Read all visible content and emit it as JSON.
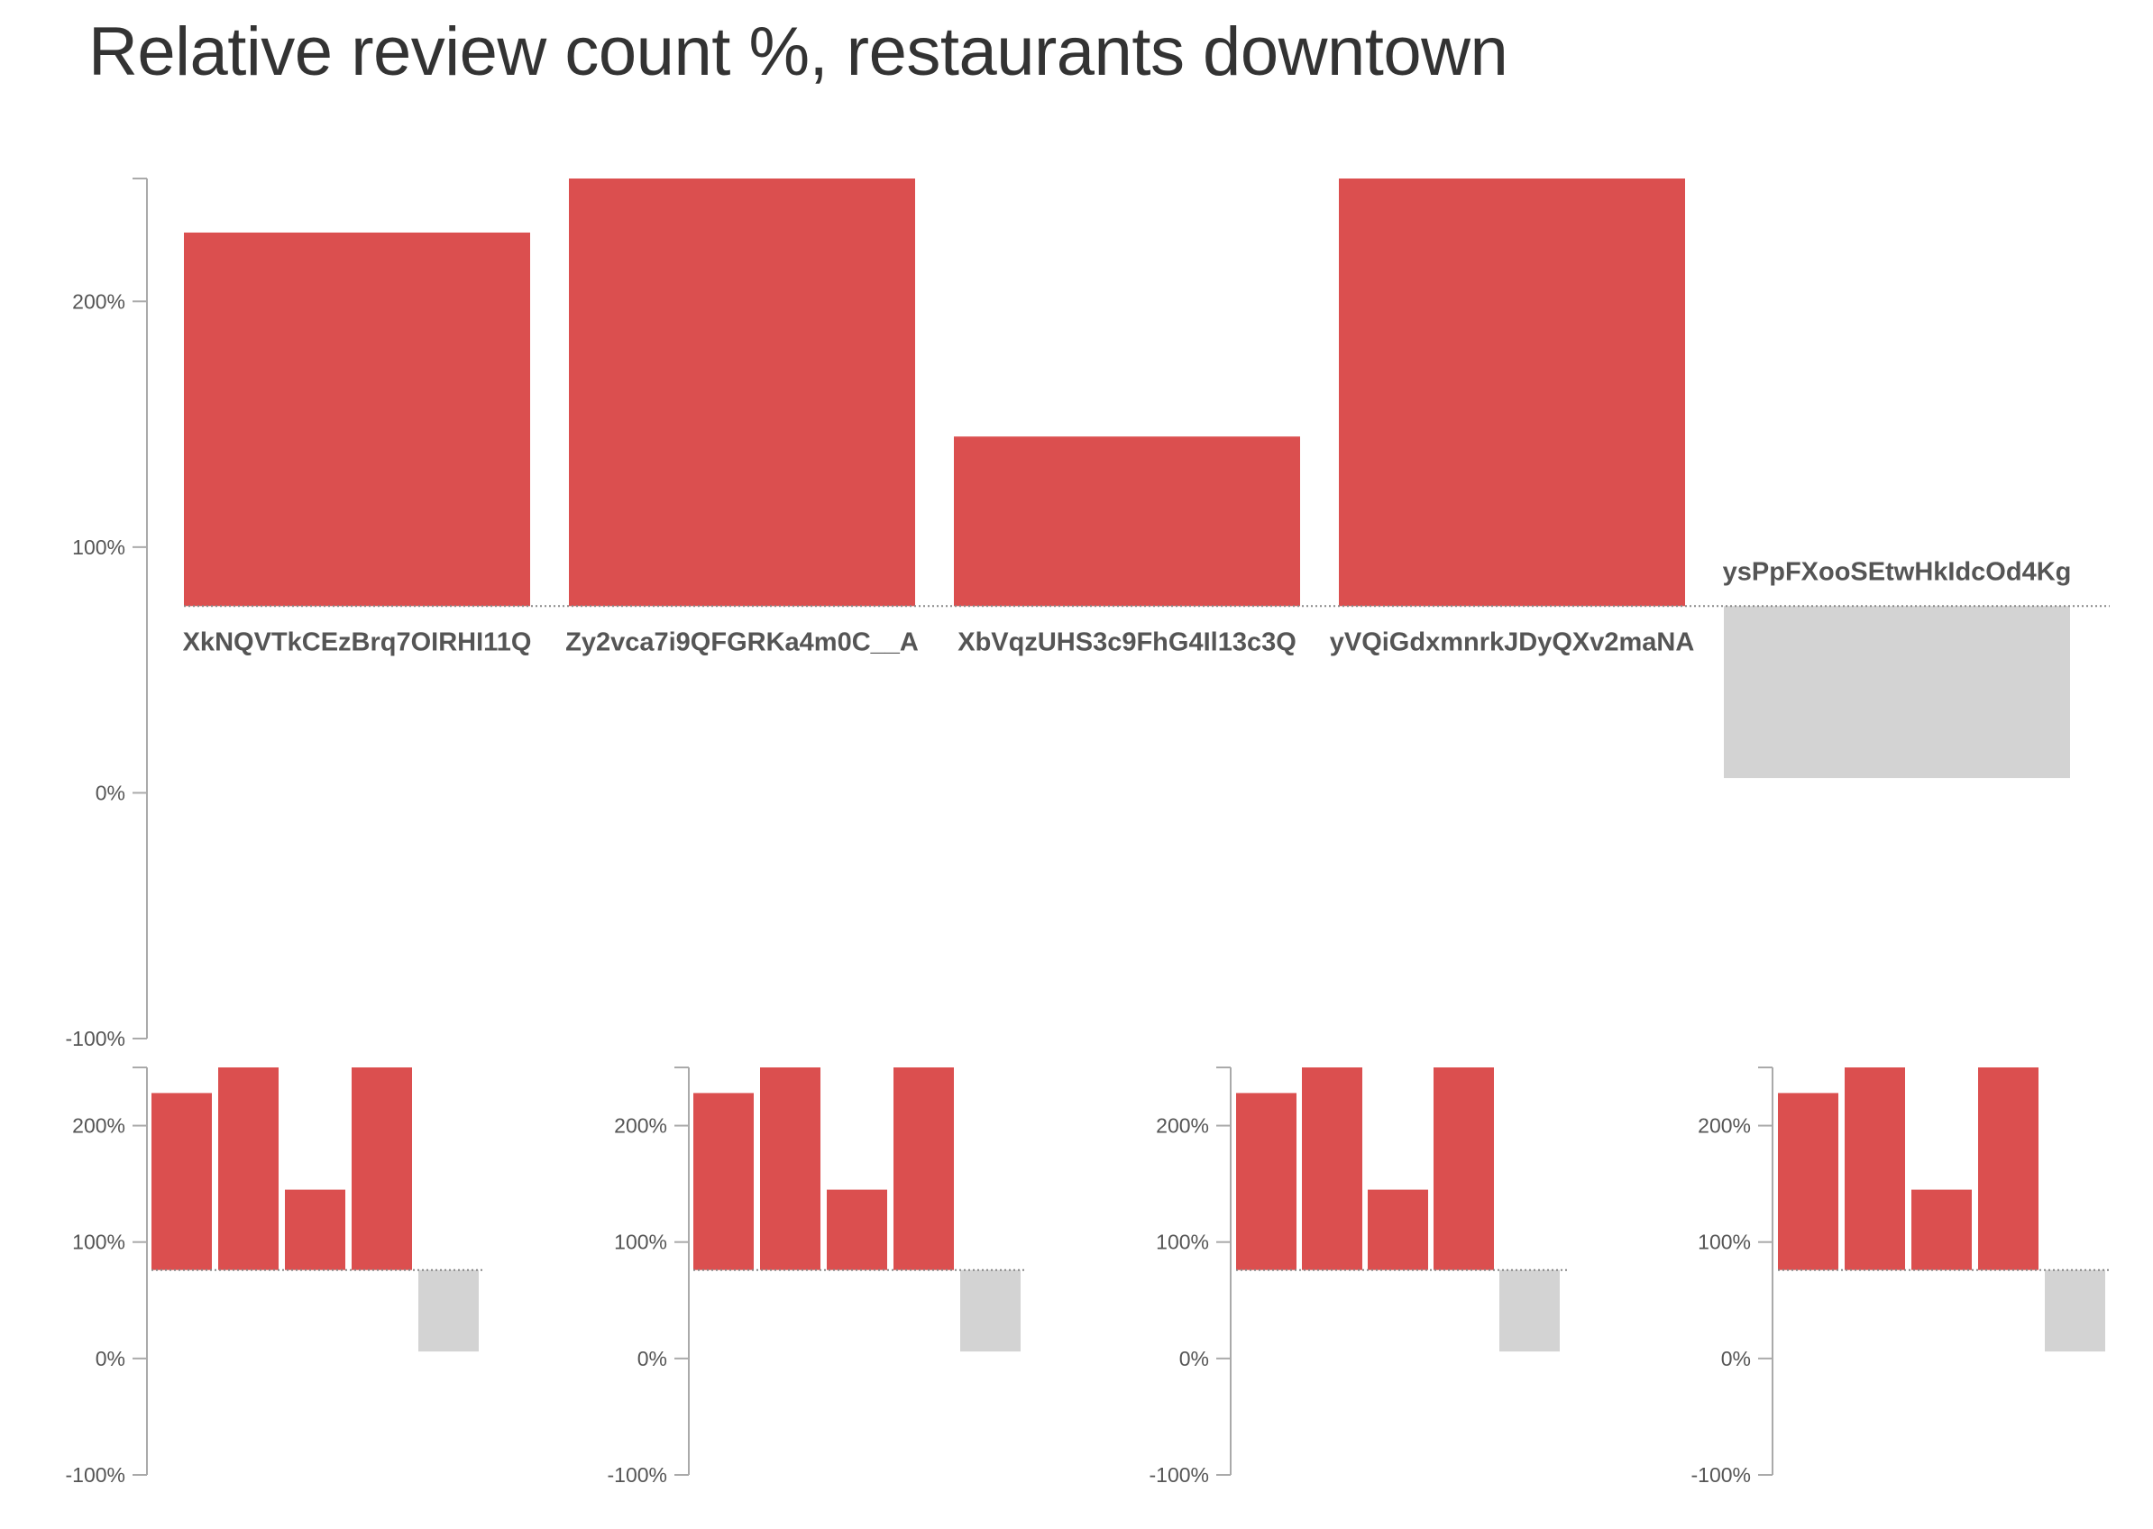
{
  "chart_data": [
    {
      "type": "bar",
      "title": "Relative review count %, restaurants downtown",
      "categories": [
        "XkNQVTkCEzBrq7OIRHI11Q",
        "Zy2vca7i9QFGRKa4m0C__A",
        "XbVqzUHS3c9FhG4Il13c3Q",
        "yVQiGdxmnrkJDyQXv2maNA",
        "ysPpFXooSEtwHkIdcOd4Kg"
      ],
      "baseline": 76,
      "values": [
        228,
        250,
        145,
        250,
        6
      ],
      "ylim": [
        -100,
        250
      ],
      "yticks": [
        -100,
        0,
        100,
        200
      ],
      "ytick_labels": [
        "-100%",
        "0%",
        "100%",
        "200%"
      ],
      "colors": {
        "positive": "#db4f4f",
        "negative": "#d3d3d3"
      }
    },
    {
      "type": "bar",
      "baseline": 76,
      "values": [
        228,
        250,
        145,
        250,
        6
      ],
      "ylim": [
        -100,
        250
      ],
      "yticks": [
        -100,
        0,
        100,
        200
      ],
      "ytick_labels": [
        "-100%",
        "0%",
        "100%",
        "200%"
      ],
      "colors": {
        "positive": "#db4f4f",
        "negative": "#d3d3d3"
      }
    },
    {
      "type": "bar",
      "baseline": 76,
      "values": [
        228,
        250,
        145,
        250,
        6
      ],
      "ylim": [
        -100,
        250
      ],
      "yticks": [
        -100,
        0,
        100,
        200
      ],
      "ytick_labels": [
        "-100%",
        "0%",
        "100%",
        "200%"
      ],
      "colors": {
        "positive": "#db4f4f",
        "negative": "#d3d3d3"
      }
    },
    {
      "type": "bar",
      "baseline": 76,
      "values": [
        228,
        250,
        145,
        250,
        6
      ],
      "ylim": [
        -100,
        250
      ],
      "yticks": [
        -100,
        0,
        100,
        200
      ],
      "ytick_labels": [
        "-100%",
        "0%",
        "100%",
        "200%"
      ],
      "colors": {
        "positive": "#db4f4f",
        "negative": "#d3d3d3"
      }
    },
    {
      "type": "bar",
      "baseline": 76,
      "values": [
        228,
        250,
        145,
        250,
        6
      ],
      "ylim": [
        -100,
        250
      ],
      "yticks": [
        -100,
        0,
        100,
        200
      ],
      "ytick_labels": [
        "-100%",
        "0%",
        "100%",
        "200%"
      ],
      "colors": {
        "positive": "#db4f4f",
        "negative": "#d3d3d3"
      }
    }
  ]
}
